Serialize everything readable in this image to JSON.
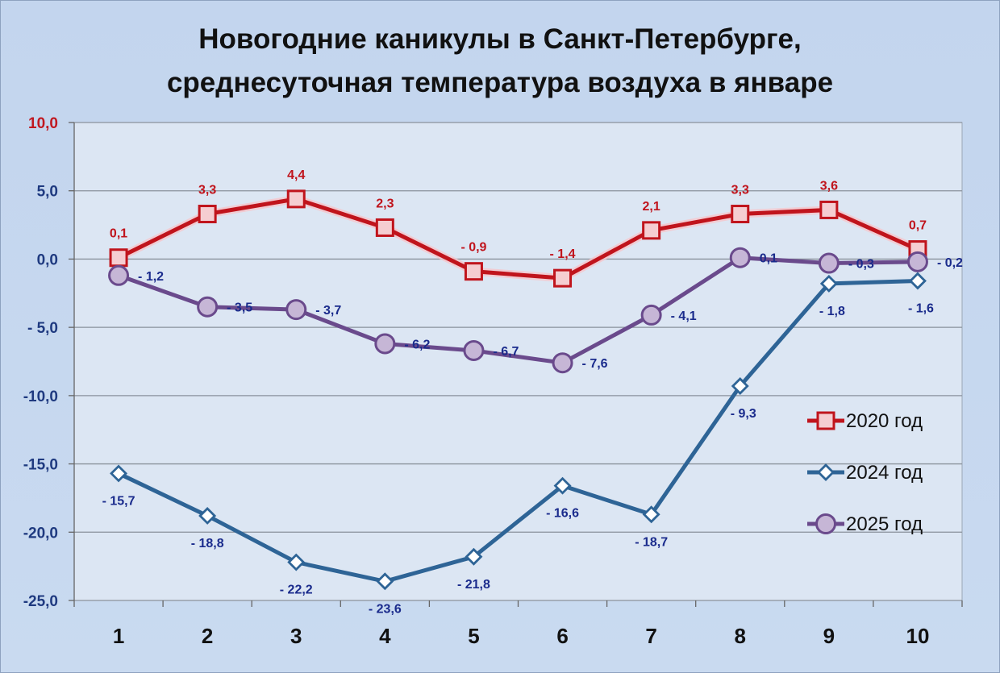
{
  "title": {
    "line1": "Новогодние каникулы в Санкт-Петербурге,",
    "line2": "среднесуточная температура воздуха в январе"
  },
  "chart_data": {
    "type": "line",
    "title": "Новогодние каникулы в Санкт-Петербурге, среднесуточная температура воздуха в январе",
    "xlabel": "",
    "ylabel": "",
    "categories": [
      "1",
      "2",
      "3",
      "4",
      "5",
      "6",
      "7",
      "8",
      "9",
      "10"
    ],
    "ylim": [
      -25,
      10
    ],
    "y_ticks": [
      "10,0",
      "5,0",
      "0,0",
      "- 5,0",
      "-10,0",
      "-15,0",
      "-20,0",
      "-25,0"
    ],
    "grid": true,
    "legend_position": "right",
    "series": [
      {
        "name": "2020 год",
        "color": "#c0141c",
        "marker": "square",
        "values": [
          0.1,
          3.3,
          4.4,
          2.3,
          -0.9,
          -1.4,
          2.1,
          3.3,
          3.6,
          0.7
        ],
        "labels": [
          "0,1",
          "3,3",
          "4,4",
          "2,3",
          "- 0,9",
          "- 1,4",
          "2,1",
          "3,3",
          "3,6",
          "0,7"
        ]
      },
      {
        "name": "2024 год",
        "color": "#2e6496",
        "marker": "diamond",
        "values": [
          -15.7,
          -18.8,
          -22.2,
          -23.6,
          -21.8,
          -16.6,
          -18.7,
          -9.3,
          -1.8,
          -1.6
        ],
        "labels": [
          "- 15,7",
          "- 18,8",
          "- 22,2",
          "- 23,6",
          "- 21,8",
          "- 16,6",
          "- 18,7",
          "- 9,3",
          "- 1,8",
          "- 1,6"
        ]
      },
      {
        "name": "2025 год",
        "color": "#6a4a8c",
        "marker": "circle",
        "values": [
          -1.2,
          -3.5,
          -3.7,
          -6.2,
          -6.7,
          -7.6,
          -4.1,
          0.1,
          -0.3,
          -0.2
        ],
        "labels": [
          "- 1,2",
          "- 3,5",
          "- 3,7",
          "- 6,2",
          "- 6,7",
          "- 7,6",
          "- 4,1",
          "0,1",
          "- 0,3",
          "- 0,2"
        ]
      }
    ]
  }
}
